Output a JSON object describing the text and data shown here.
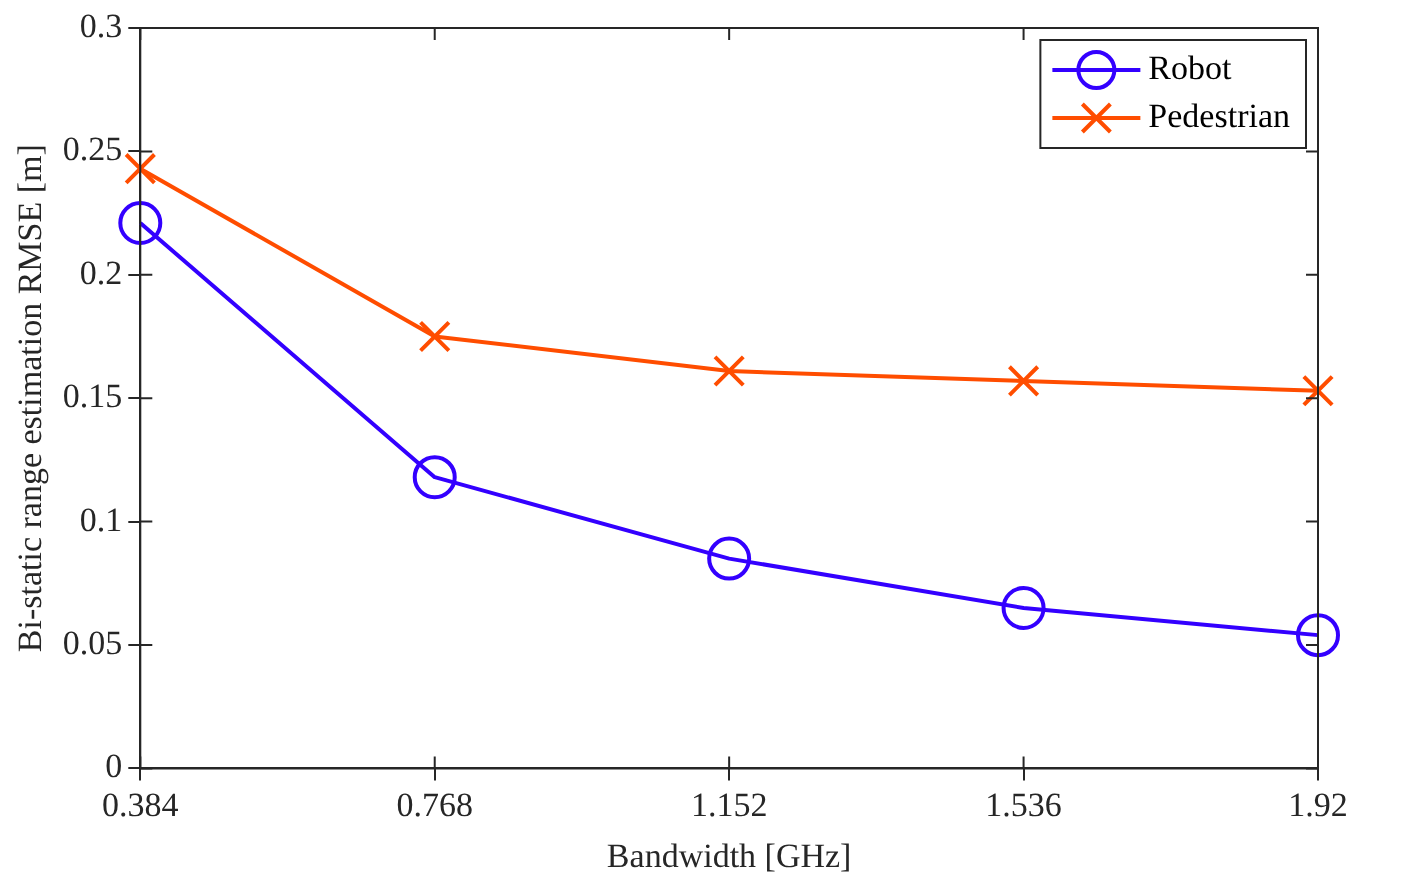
{
  "chart_data": {
    "type": "line",
    "xlabel": "Bandwidth [GHz]",
    "ylabel": "Bi-static range estimation RMSE [m]",
    "x": [
      0.384,
      0.768,
      1.152,
      1.536,
      1.92
    ],
    "series": [
      {
        "name": "Robot",
        "color": "#3300ff",
        "marker": "circle",
        "values": [
          0.221,
          0.118,
          0.085,
          0.065,
          0.054
        ]
      },
      {
        "name": "Pedestrian",
        "color": "#ff4d00",
        "marker": "cross",
        "values": [
          0.243,
          0.175,
          0.161,
          0.157,
          0.153
        ]
      }
    ],
    "xlim": [
      0.384,
      1.92
    ],
    "xticks": [
      0.384,
      0.768,
      1.152,
      1.536,
      1.92
    ],
    "ylim": [
      0,
      0.3
    ],
    "yticks": [
      0,
      0.05,
      0.1,
      0.15,
      0.2,
      0.25,
      0.3
    ],
    "grid": false,
    "legend": "top right",
    "line_style": "solid"
  }
}
